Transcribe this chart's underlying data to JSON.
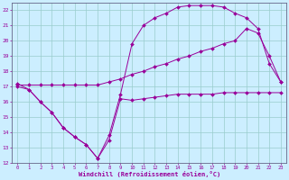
{
  "xlabel": "Windchill (Refroidissement éolien,°C)",
  "ylabel": "",
  "xlim": [
    -0.5,
    23.5
  ],
  "ylim": [
    12,
    22.5
  ],
  "yticks": [
    12,
    13,
    14,
    15,
    16,
    17,
    18,
    19,
    20,
    21,
    22
  ],
  "xticks": [
    0,
    1,
    2,
    3,
    4,
    5,
    6,
    7,
    8,
    9,
    10,
    11,
    12,
    13,
    14,
    15,
    16,
    17,
    18,
    19,
    20,
    21,
    22,
    23
  ],
  "bg_color": "#cceeff",
  "grid_color": "#99cccc",
  "line_color": "#990099",
  "series1_x": [
    0,
    1,
    2,
    3,
    4,
    5,
    6,
    7,
    8,
    9,
    10,
    11,
    12,
    13,
    14,
    15,
    16,
    17,
    18,
    19,
    20,
    21,
    22,
    23
  ],
  "series1_y": [
    17.0,
    16.8,
    16.0,
    15.3,
    14.3,
    13.7,
    13.2,
    12.3,
    13.5,
    16.2,
    16.1,
    16.2,
    16.3,
    16.4,
    16.5,
    16.5,
    16.5,
    16.5,
    16.6,
    16.6,
    16.6,
    16.6,
    16.6,
    16.6
  ],
  "series2_x": [
    0,
    1,
    2,
    3,
    4,
    5,
    6,
    7,
    8,
    9,
    10,
    11,
    12,
    13,
    14,
    15,
    16,
    17,
    18,
    19,
    20,
    21,
    22,
    23
  ],
  "series2_y": [
    17.1,
    17.1,
    17.1,
    17.1,
    17.1,
    17.1,
    17.1,
    17.1,
    17.3,
    17.5,
    17.8,
    18.0,
    18.3,
    18.5,
    18.8,
    19.0,
    19.3,
    19.5,
    19.8,
    20.0,
    20.8,
    20.5,
    19.0,
    17.3
  ],
  "series3_x": [
    0,
    1,
    2,
    3,
    4,
    5,
    6,
    7,
    8,
    9,
    10,
    11,
    12,
    13,
    14,
    15,
    16,
    17,
    18,
    19,
    20,
    21,
    22,
    23
  ],
  "series3_y": [
    17.2,
    16.8,
    16.0,
    15.3,
    14.3,
    13.7,
    13.2,
    12.3,
    13.8,
    16.5,
    19.8,
    21.0,
    21.5,
    21.8,
    22.2,
    22.3,
    22.3,
    22.3,
    22.2,
    21.8,
    21.5,
    20.8,
    18.5,
    17.3
  ]
}
